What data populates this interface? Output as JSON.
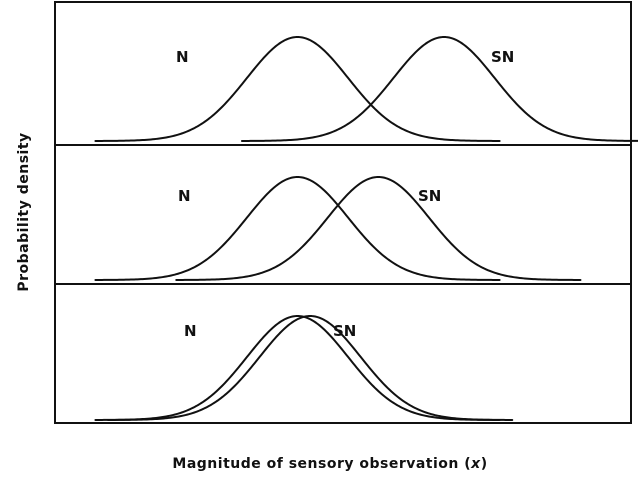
{
  "chart_data": [
    {
      "type": "line",
      "panel": 1,
      "xlabel": "Magnitude of sensory observation (x)",
      "ylabel": "Probability density",
      "xlim": [
        -4.8,
        6.6
      ],
      "ylim": [
        0,
        1.0
      ],
      "grid": false,
      "series": [
        {
          "name": "N",
          "mean": 0,
          "sd": 1,
          "peak": 1.0
        },
        {
          "name": "SN",
          "mean": 2.9,
          "sd": 1,
          "peak": 1.0
        }
      ]
    },
    {
      "type": "line",
      "panel": 2,
      "xlabel": "Magnitude of sensory observation (x)",
      "ylabel": "Probability density",
      "xlim": [
        -4.8,
        6.6
      ],
      "ylim": [
        0,
        1.0
      ],
      "grid": false,
      "series": [
        {
          "name": "N",
          "mean": 0,
          "sd": 1,
          "peak": 1.0
        },
        {
          "name": "SN",
          "mean": 1.6,
          "sd": 1,
          "peak": 1.0
        }
      ]
    },
    {
      "type": "line",
      "panel": 3,
      "xlabel": "Magnitude of sensory observation (x)",
      "ylabel": "Probability density",
      "xlim": [
        -4.8,
        6.6
      ],
      "ylim": [
        0,
        1.0
      ],
      "grid": false,
      "series": [
        {
          "name": "N",
          "mean": 0,
          "sd": 1,
          "peak": 1.0
        },
        {
          "name": "SN",
          "mean": 0.25,
          "sd": 1,
          "peak": 1.0
        }
      ]
    }
  ],
  "labels": {
    "xlabel_main": "Magnitude of sensory observation (",
    "xlabel_var": "x",
    "xlabel_close": ")",
    "ylabel": "Probability density"
  }
}
